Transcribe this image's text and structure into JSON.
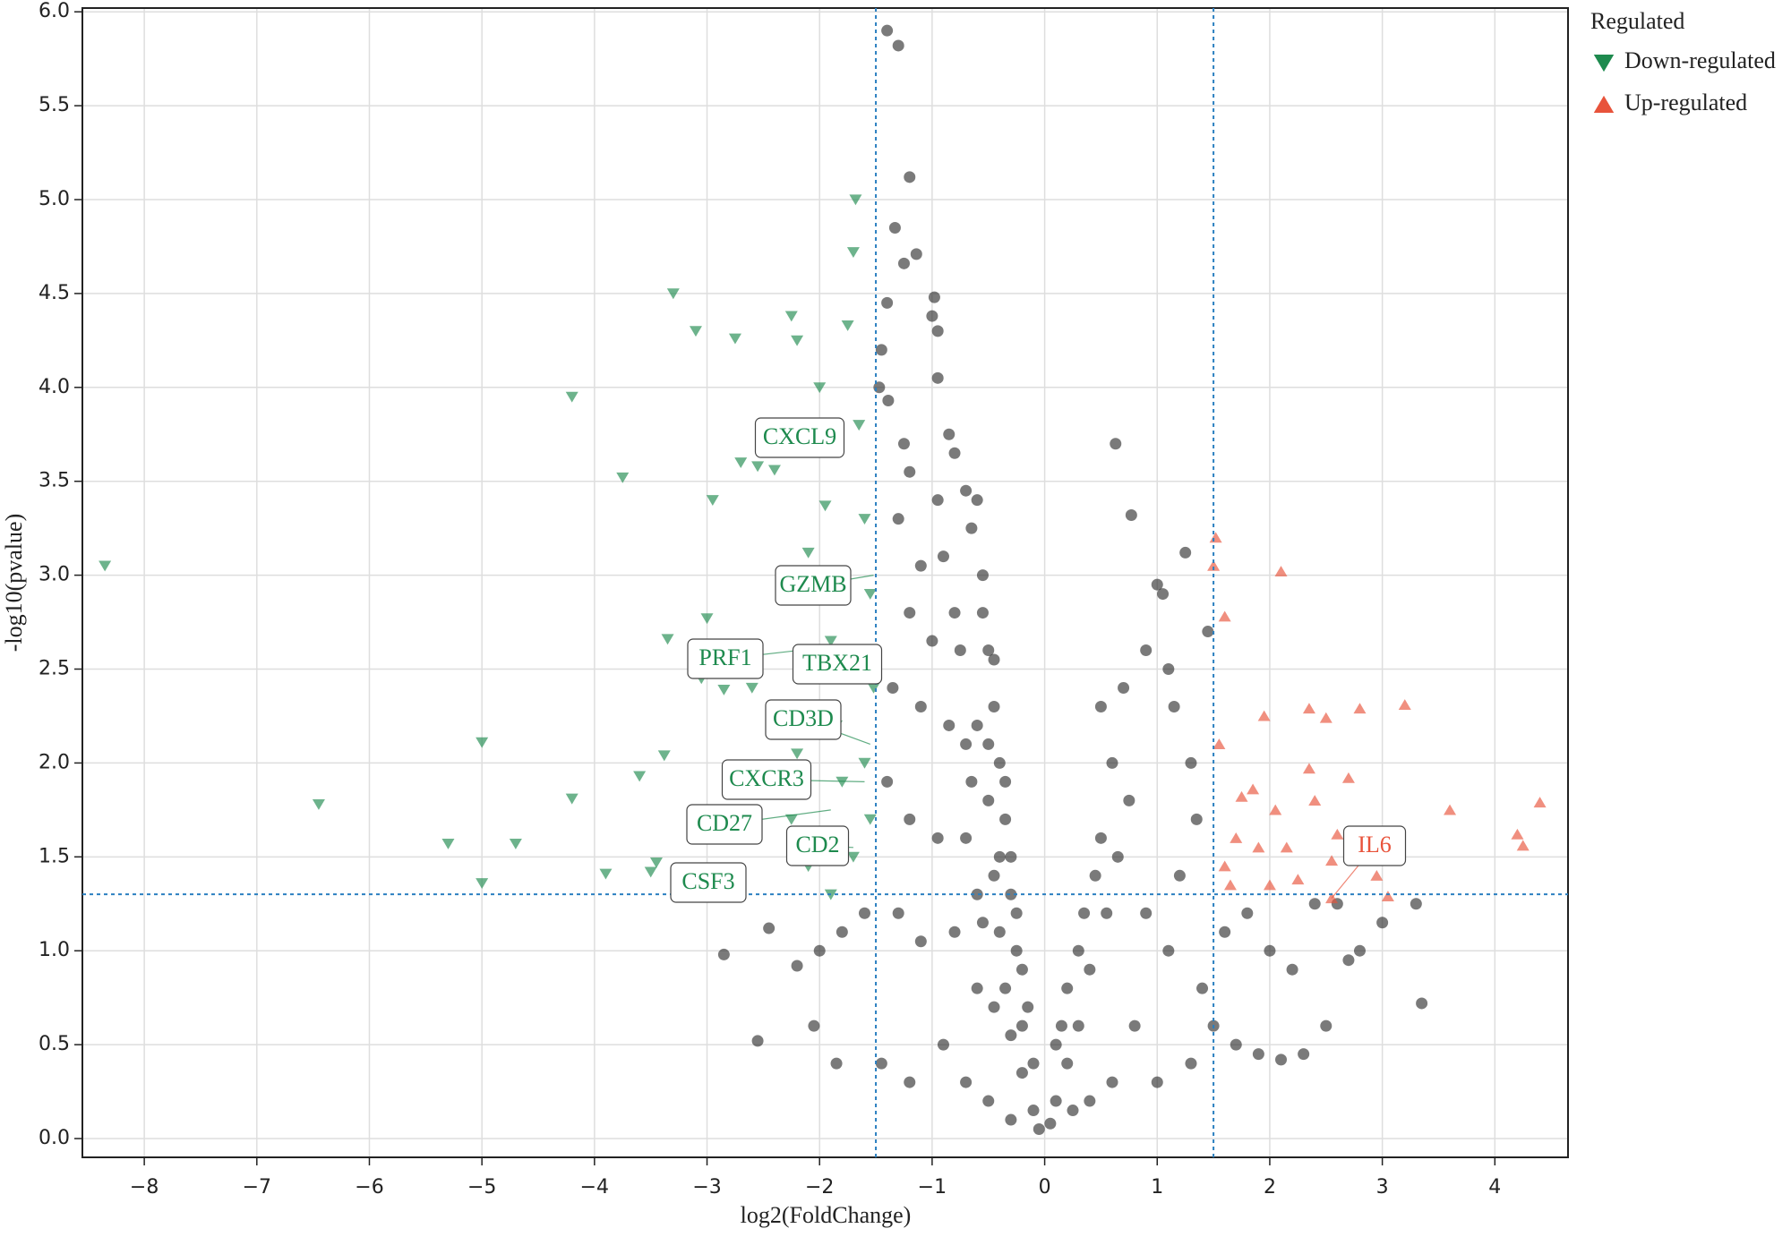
{
  "chart_data": {
    "type": "scatter",
    "xlabel": "log2(FoldChange)",
    "ylabel": "-log10(pvalue)",
    "xlim": [
      -8.55,
      4.65
    ],
    "ylim": [
      -0.1,
      6.02
    ],
    "xticks": [
      {
        "value": -8,
        "label": "−8"
      },
      {
        "value": -7,
        "label": "−7"
      },
      {
        "value": -6,
        "label": "−6"
      },
      {
        "value": -5,
        "label": "−5"
      },
      {
        "value": -4,
        "label": "−4"
      },
      {
        "value": -3,
        "label": "−3"
      },
      {
        "value": -2,
        "label": "−2"
      },
      {
        "value": -1,
        "label": "−1"
      },
      0,
      1,
      2,
      3,
      4
    ],
    "yticks": [
      {
        "value": 0,
        "label": "0.0"
      },
      0.5,
      {
        "value": 1,
        "label": "1.0"
      },
      1.5,
      {
        "value": 2,
        "label": "2.0"
      },
      2.5,
      {
        "value": 3,
        "label": "3.0"
      },
      3.5,
      {
        "value": 4,
        "label": "4.0"
      },
      4.5,
      {
        "value": 5,
        "label": "5.0"
      },
      5.5,
      {
        "value": 6,
        "label": "6.0"
      }
    ],
    "grid": true,
    "vlines": [
      -1.5,
      1.5
    ],
    "hlines": [
      1.301
    ],
    "legend_title": "Regulated",
    "legend_position": "outside-right-top",
    "series": [
      {
        "color": "#222222",
        "marker": "circle",
        "x": [
          -1.4,
          -1.3,
          -1.2,
          -1.33,
          -1.14,
          -1.25,
          -1.4,
          -0.98,
          -1.0,
          -0.95,
          -1.45,
          -1.47,
          -0.95,
          -1.39,
          -1.25,
          -0.85,
          -0.8,
          -1.2,
          -0.95,
          -0.7,
          -0.6,
          -0.65,
          -1.3,
          -1.1,
          -0.9,
          -0.55,
          -1.2,
          -1.0,
          -0.75,
          -0.45,
          -1.35,
          -1.1,
          -0.85,
          -0.5,
          -0.35,
          -1.4,
          -1.2,
          -0.95,
          -0.7,
          -0.4,
          -0.3,
          -1.3,
          -1.1,
          -0.8,
          -0.55,
          -0.25,
          -1.6,
          -1.8,
          -2.0,
          -2.2,
          -2.45,
          -2.85,
          -2.55,
          -2.05,
          -1.85,
          -1.45,
          -1.2,
          -0.9,
          -0.6,
          -0.45,
          -0.3,
          -0.2,
          -0.1,
          -0.7,
          -0.5,
          -0.3,
          -0.05,
          0.05,
          0.1,
          0.2,
          0.3,
          0.4,
          0.55,
          0.65,
          0.75,
          0.6,
          0.5,
          0.7,
          0.9,
          1.1,
          0.63,
          0.77,
          1.25,
          1.0,
          1.05,
          1.15,
          1.3,
          1.45,
          1.35,
          1.2,
          0.9,
          1.1,
          1.4,
          1.6,
          1.8,
          2.0,
          2.2,
          2.4,
          2.6,
          2.7,
          3.3,
          3.35,
          2.5,
          2.3,
          2.1,
          1.9,
          1.7,
          1.5,
          1.3,
          1.0,
          0.8,
          0.6,
          0.4,
          0.25,
          2.8,
          3.0,
          -0.1,
          -0.15,
          -0.2,
          -0.25,
          -0.3,
          -0.35,
          -0.4,
          -0.45,
          -0.5,
          -0.55,
          -0.6,
          -0.5,
          -0.45,
          -0.4,
          -0.35,
          -0.6,
          -0.65,
          -0.7,
          -0.8,
          -0.2,
          0.1,
          0.15,
          0.2,
          0.3,
          0.35,
          0.45,
          0.5
        ],
        "values": [
          5.9,
          5.82,
          5.12,
          4.85,
          4.71,
          4.66,
          4.45,
          4.48,
          4.38,
          4.3,
          4.2,
          4.0,
          4.05,
          3.93,
          3.7,
          3.75,
          3.65,
          3.55,
          3.4,
          3.45,
          3.4,
          3.25,
          3.3,
          3.05,
          3.1,
          3.0,
          2.8,
          2.65,
          2.6,
          2.55,
          2.4,
          2.3,
          2.2,
          2.1,
          1.9,
          1.9,
          1.7,
          1.6,
          1.6,
          1.5,
          1.3,
          1.2,
          1.05,
          1.1,
          1.15,
          1.0,
          1.2,
          1.1,
          1.0,
          0.92,
          1.12,
          0.98,
          0.52,
          0.6,
          0.4,
          0.4,
          0.3,
          0.5,
          0.8,
          0.7,
          0.55,
          0.35,
          0.15,
          0.3,
          0.2,
          0.1,
          0.05,
          0.08,
          0.2,
          0.4,
          0.6,
          0.9,
          1.2,
          1.5,
          1.8,
          2.0,
          2.3,
          2.4,
          2.6,
          2.5,
          3.7,
          3.32,
          3.12,
          2.95,
          2.9,
          2.3,
          2.0,
          2.7,
          1.7,
          1.4,
          1.2,
          1.0,
          0.8,
          1.1,
          1.2,
          1.0,
          0.9,
          1.25,
          1.25,
          0.95,
          1.25,
          0.72,
          0.6,
          0.45,
          0.42,
          0.45,
          0.5,
          0.6,
          0.4,
          0.3,
          0.6,
          0.3,
          0.2,
          0.15,
          1.0,
          1.15,
          0.4,
          0.7,
          0.9,
          1.2,
          1.5,
          1.7,
          2.0,
          2.3,
          2.6,
          2.8,
          2.2,
          1.8,
          1.4,
          1.1,
          0.8,
          1.3,
          1.9,
          2.1,
          2.8,
          0.6,
          0.5,
          0.6,
          0.8,
          1.0,
          1.2,
          1.4,
          1.6
        ]
      },
      {
        "name": "Down-regulated",
        "color": "#1e8a4e",
        "marker": "triangle-down",
        "x": [
          -8.35,
          -6.45,
          -5.3,
          -5.0,
          -5.0,
          -4.7,
          -4.2,
          -4.2,
          -3.9,
          -3.75,
          -3.6,
          -3.5,
          -3.45,
          -3.38,
          -3.35,
          -3.3,
          -3.1,
          -3.05,
          -3.0,
          -2.95,
          -2.9,
          -2.85,
          -2.75,
          -2.7,
          -2.55,
          -2.45,
          -2.4,
          -2.25,
          -2.2,
          -2.1,
          -2.0,
          -1.95,
          -1.9,
          -1.85,
          -1.75,
          -1.7,
          -1.68,
          -1.65,
          -1.6,
          -1.55,
          -1.52,
          -1.6,
          -1.55,
          -1.7,
          -1.9,
          -2.1,
          -2.25,
          -2.6,
          -2.8,
          -2.2,
          -1.8
        ],
        "values": [
          3.05,
          1.78,
          1.57,
          2.11,
          1.36,
          1.57,
          3.95,
          1.81,
          1.41,
          3.52,
          1.93,
          1.42,
          1.47,
          2.04,
          2.66,
          4.5,
          4.3,
          2.45,
          2.77,
          3.4,
          2.61,
          2.39,
          4.26,
          3.6,
          3.58,
          1.93,
          3.56,
          4.38,
          4.25,
          3.12,
          4.0,
          3.37,
          2.65,
          2.2,
          4.33,
          4.72,
          5.0,
          3.8,
          3.3,
          2.9,
          2.4,
          2.0,
          1.7,
          1.5,
          1.3,
          1.45,
          1.7,
          2.4,
          2.55,
          2.05,
          1.9
        ]
      },
      {
        "name": "Up-regulated",
        "color": "#e8533b",
        "marker": "triangle-up",
        "x": [
          1.52,
          1.5,
          1.6,
          1.55,
          2.1,
          1.95,
          2.35,
          2.5,
          2.8,
          3.2,
          2.35,
          2.7,
          1.75,
          1.85,
          2.05,
          2.4,
          3.6,
          4.4,
          4.2,
          4.25,
          1.7,
          1.9,
          2.15,
          2.55,
          2.6,
          2.95,
          3.05,
          1.6,
          1.65,
          2.0,
          2.25,
          2.55
        ],
        "values": [
          3.2,
          3.05,
          2.78,
          2.1,
          3.02,
          2.25,
          2.29,
          2.24,
          2.29,
          2.31,
          1.97,
          1.92,
          1.82,
          1.86,
          1.75,
          1.8,
          1.75,
          1.79,
          1.62,
          1.56,
          1.6,
          1.55,
          1.55,
          1.48,
          1.62,
          1.4,
          1.29,
          1.45,
          1.35,
          1.35,
          1.38,
          1.28
        ]
      }
    ],
    "annotations": [
      {
        "text": "CXCL9",
        "color": "#1e8a4e",
        "x": -1.83,
        "y": 3.64
      },
      {
        "text": "GZMB",
        "color": "#1e8a4e",
        "x": -1.52,
        "y": 3.0
      },
      {
        "text": "PRF1",
        "color": "#1e8a4e",
        "x": -2.18,
        "y": 2.6
      },
      {
        "text": "TBX21",
        "color": "#1e8a4e",
        "x": -1.6,
        "y": 2.45
      },
      {
        "text": "CD3D",
        "color": "#1e8a4e",
        "x": -1.55,
        "y": 2.1
      },
      {
        "text": "CXCR3",
        "color": "#1e8a4e",
        "x": -1.6,
        "y": 1.9
      },
      {
        "text": "CD27",
        "color": "#1e8a4e",
        "x": -1.9,
        "y": 1.75
      },
      {
        "text": "CD2",
        "color": "#1e8a4e",
        "x": -1.7,
        "y": 1.55
      },
      {
        "text": "CSF3",
        "color": "#1e8a4e",
        "x": -2.7,
        "y": 1.3
      },
      {
        "text": "IL6",
        "color": "#e8533b",
        "x": 2.55,
        "y": 1.28
      }
    ]
  }
}
